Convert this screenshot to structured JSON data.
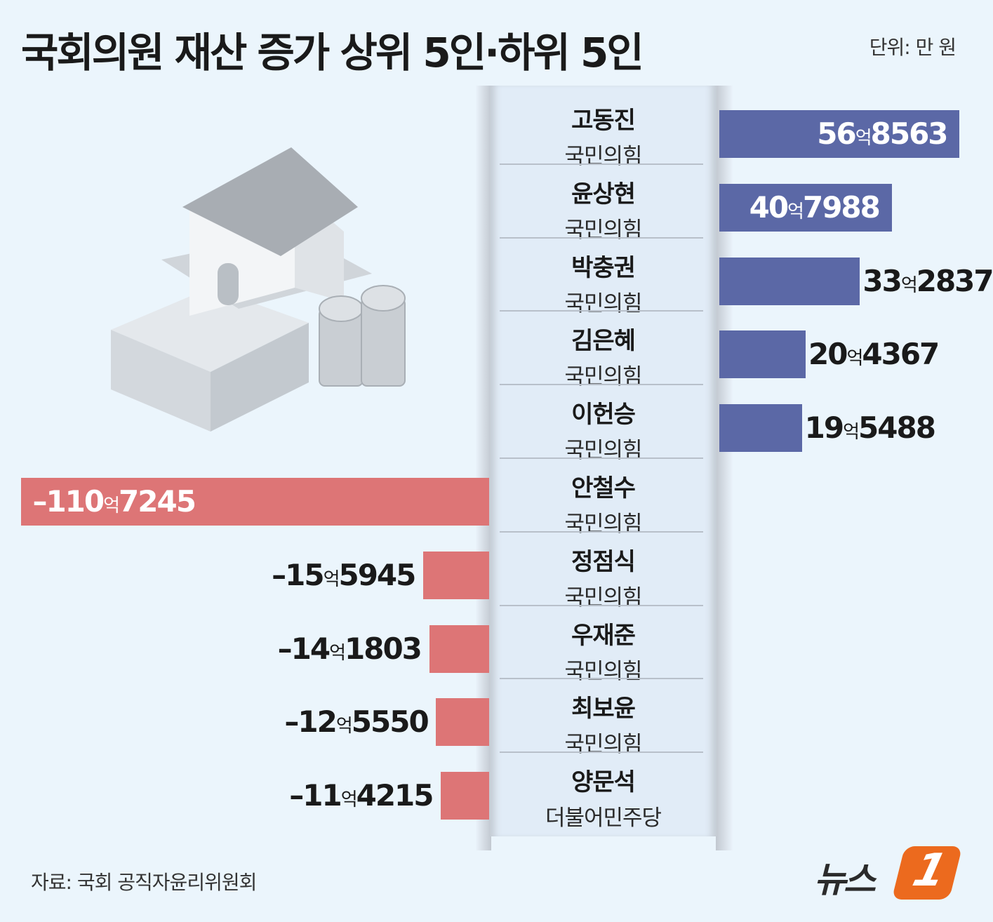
{
  "header": {
    "title": "국회의원 재산 증가 상위 5인·하위 5인",
    "unit": "단위: 만 원"
  },
  "footer": {
    "source": "자료: 국회 공직자윤리위원회",
    "logo_text": "뉴스",
    "logo_mark": "1"
  },
  "colors": {
    "increase": "#5b68a6",
    "decrease": "#dd7576",
    "background": "#ebf5fc"
  },
  "chart_data": {
    "type": "bar",
    "orientation": "horizontal-diverging",
    "title": "국회의원 재산 증가 상위 5인·하위 5인",
    "unit": "만 원",
    "categories": [
      "고동진",
      "윤상현",
      "박충권",
      "김은혜",
      "이헌승",
      "안철수",
      "정점식",
      "우재준",
      "최보윤",
      "양문석"
    ],
    "parties": [
      "국민의힘",
      "국민의힘",
      "국민의힘",
      "국민의힘",
      "국민의힘",
      "국민의힘",
      "국민의힘",
      "국민의힘",
      "국민의힘",
      "더불어민주당"
    ],
    "values": [
      568563,
      407988,
      332837,
      204367,
      195488,
      -1107245,
      -155945,
      -141803,
      -125550,
      -114215
    ],
    "labels": [
      "56억8563",
      "40억7988",
      "33억2837",
      "20억4367",
      "19억5488",
      "-110억7245",
      "-15억5945",
      "-14억1803",
      "-12억5550",
      "-11억4215"
    ]
  }
}
